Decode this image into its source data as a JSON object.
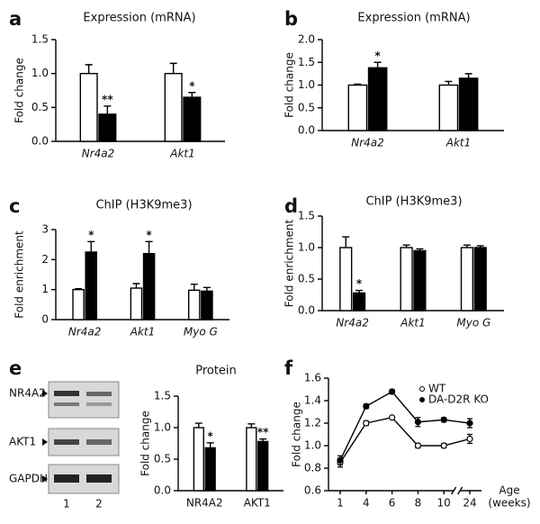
{
  "chart_data": [
    {
      "type": "bar",
      "label": "a",
      "title": "Expression (mRNA)",
      "y_label": "Fold change",
      "categories": [
        "Nr4a2",
        "Akt1"
      ],
      "series": [
        {
          "color": "#ffffff",
          "values": [
            1.0,
            1.0
          ],
          "errors": [
            0.13,
            0.15
          ]
        },
        {
          "color": "#000000",
          "values": [
            0.4,
            0.65
          ],
          "errors": [
            0.12,
            0.07
          ],
          "annotations": [
            "**",
            "*"
          ]
        }
      ],
      "ylim": [
        0,
        1.5
      ],
      "yticks": [
        {
          "value": 0,
          "label": "0.0"
        },
        0.5,
        {
          "value": 1,
          "label": "1.0"
        },
        1.5
      ]
    },
    {
      "type": "bar",
      "label": "b",
      "title": "Expression (mRNA)",
      "y_label": "Fold change",
      "categories": [
        "Nr4a2",
        "Akt1"
      ],
      "series": [
        {
          "color": "#ffffff",
          "values": [
            1.0,
            1.0
          ],
          "errors": [
            0.02,
            0.08
          ]
        },
        {
          "color": "#000000",
          "values": [
            1.38,
            1.15
          ],
          "errors": [
            0.12,
            0.1
          ],
          "annotations": [
            "*",
            null
          ]
        }
      ],
      "ylim": [
        0,
        2
      ],
      "yticks": [
        {
          "value": 0,
          "label": "0.0"
        },
        0.5,
        {
          "value": 1,
          "label": "1.0"
        },
        1.5,
        {
          "value": 2,
          "label": "2.0"
        }
      ]
    },
    {
      "type": "bar",
      "label": "c",
      "title": "ChIP (H3K9me3)",
      "y_label": "Fold enrichment",
      "categories": [
        "Nr4a2",
        "Akt1",
        "Myo G"
      ],
      "series": [
        {
          "color": "#ffffff",
          "values": [
            1.0,
            1.05,
            0.98
          ],
          "errors": [
            0.03,
            0.15,
            0.2
          ]
        },
        {
          "color": "#000000",
          "values": [
            2.25,
            2.2,
            0.95
          ],
          "errors": [
            0.35,
            0.4,
            0.12
          ],
          "annotations": [
            "*",
            "*",
            null
          ]
        }
      ],
      "ylim": [
        0,
        3
      ],
      "yticks": [
        0,
        1,
        2,
        3
      ]
    },
    {
      "type": "bar",
      "label": "d",
      "title": "ChIP (H3K9me3)",
      "y_label": "Fold enrichment",
      "categories": [
        "Nr4a2",
        "Akt1",
        "Myo G"
      ],
      "series": [
        {
          "color": "#ffffff",
          "values": [
            1.0,
            1.0,
            1.0
          ],
          "errors": [
            0.17,
            0.04,
            0.04
          ]
        },
        {
          "color": "#000000",
          "values": [
            0.28,
            0.95,
            1.0
          ],
          "errors": [
            0.04,
            0.03,
            0.03
          ],
          "annotations": [
            "*",
            null,
            null
          ]
        }
      ],
      "ylim": [
        0,
        1.5
      ],
      "yticks": [
        {
          "value": 0,
          "label": "0.0"
        },
        0.5,
        {
          "value": 1,
          "label": "1.0"
        },
        1.5
      ]
    },
    {
      "type": "bar",
      "label": "e",
      "title": "Protein",
      "y_label": "Fold change",
      "blot": {
        "rows": [
          "NR4A2",
          "AKT1",
          "GAPDH"
        ],
        "lanes": [
          "1",
          "2"
        ]
      },
      "categories": [
        "NR4A2",
        "AKT1"
      ],
      "series": [
        {
          "color": "#ffffff",
          "values": [
            1.0,
            1.0
          ],
          "errors": [
            0.07,
            0.06
          ]
        },
        {
          "color": "#000000",
          "values": [
            0.68,
            0.78
          ],
          "errors": [
            0.08,
            0.04
          ],
          "annotations": [
            "*",
            "**"
          ]
        }
      ],
      "ylim": [
        0,
        1.5
      ],
      "yticks": [
        {
          "value": 0,
          "label": "0.0"
        },
        0.5,
        {
          "value": 1,
          "label": "1.0"
        },
        1.5
      ]
    },
    {
      "type": "line",
      "label": "f",
      "y_label": "Fold change",
      "x_label": [
        "Age",
        "(weeks)"
      ],
      "categories": [
        "1",
        "4",
        "6",
        "8",
        "10",
        "24"
      ],
      "series": [
        {
          "name": "WT",
          "color": "#ffffff",
          "values": [
            0.85,
            1.2,
            1.25,
            1.0,
            1.0,
            1.06
          ],
          "errors": [
            0.04,
            0.02,
            0.01,
            0.02,
            0.02,
            0.04
          ]
        },
        {
          "name": "DA-D2R KO",
          "color": "#000000",
          "values": [
            0.87,
            1.35,
            1.48,
            1.21,
            1.23,
            1.2
          ],
          "errors": [
            0.04,
            0.02,
            0.02,
            0.04,
            0.02,
            0.04
          ]
        }
      ],
      "legend": "upper right",
      "ylim": [
        0.6,
        1.6
      ],
      "yticks": [
        0.6,
        0.8,
        {
          "value": 1,
          "label": "1.0"
        },
        1.2,
        1.4,
        1.6
      ]
    }
  ]
}
